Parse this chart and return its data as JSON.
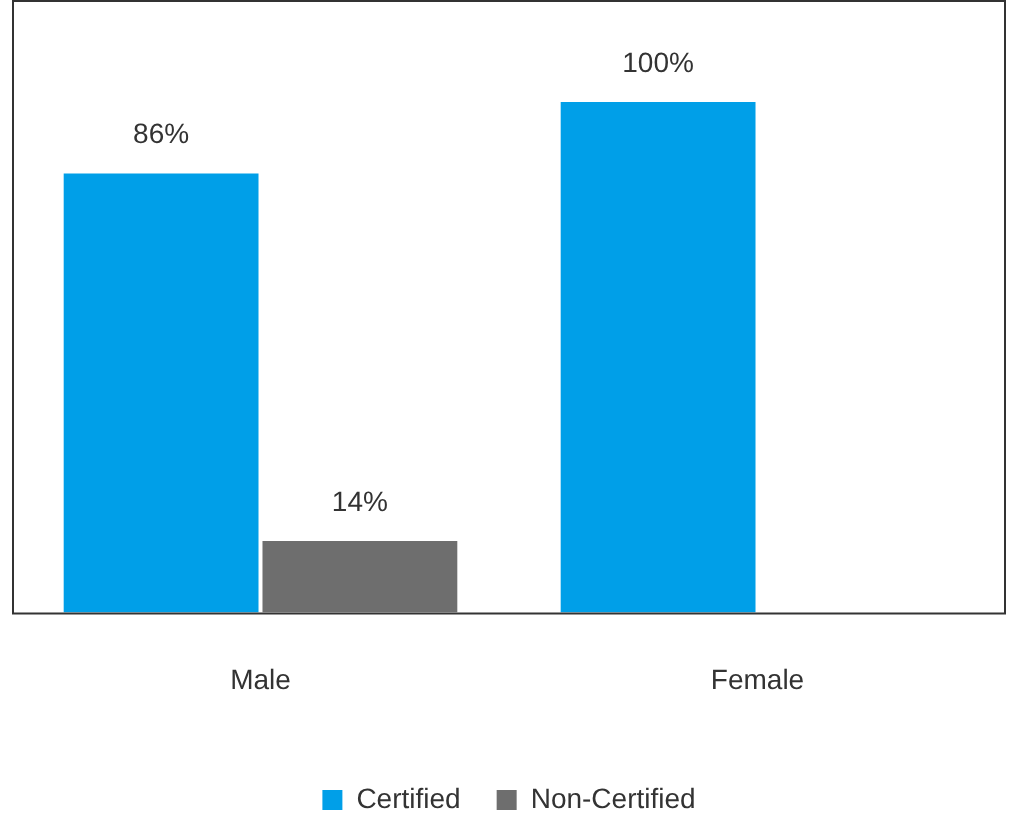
{
  "chart_data": {
    "type": "bar",
    "categories": [
      "Male",
      "Female"
    ],
    "series": [
      {
        "name": "Certified",
        "color": "#009fe8",
        "values": [
          86,
          100
        ],
        "value_labels": [
          "86%",
          "100%"
        ]
      },
      {
        "name": "Non-Certified",
        "color": "#6e6e6e",
        "values": [
          14,
          null
        ],
        "value_labels": [
          "14%",
          null
        ]
      }
    ],
    "legend": "bottom",
    "grid": false,
    "tick_labels": "x"
  }
}
